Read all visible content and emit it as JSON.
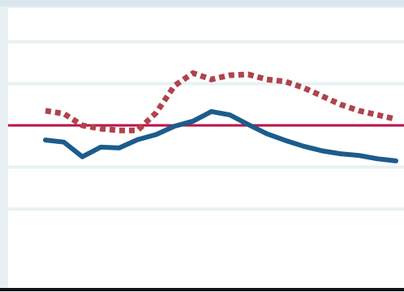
{
  "chart_data": {
    "type": "line",
    "title": "",
    "xlabel": "",
    "ylabel": "",
    "grid": true,
    "legend": "none",
    "ylim": [
      0,
      6
    ],
    "x": [
      1,
      2,
      3,
      4,
      5,
      6,
      7,
      8,
      9,
      10,
      11,
      12,
      13,
      14,
      15,
      16,
      17,
      18,
      19,
      20
    ],
    "reference_line": {
      "y": 3.0,
      "color": "#c0144a"
    },
    "series": [
      {
        "style": "solid",
        "color": "#1c5c8c",
        "values": [
          2.65,
          2.6,
          2.25,
          2.48,
          2.46,
          2.66,
          2.78,
          2.98,
          3.1,
          3.33,
          3.25,
          3.02,
          2.8,
          2.64,
          2.5,
          2.39,
          2.32,
          2.28,
          2.2,
          2.15
        ]
      },
      {
        "style": "dotted",
        "color": "#b0434b",
        "values": [
          3.35,
          3.28,
          3.0,
          2.92,
          2.88,
          2.88,
          3.3,
          3.95,
          4.25,
          4.1,
          4.2,
          4.22,
          4.1,
          4.05,
          3.9,
          3.7,
          3.5,
          3.35,
          3.25,
          3.15
        ]
      }
    ]
  },
  "colors": {
    "background": "#e9f0f4",
    "plot_background": "#ffffff",
    "gridline": "#e9f1f3",
    "axis": "#111111"
  }
}
